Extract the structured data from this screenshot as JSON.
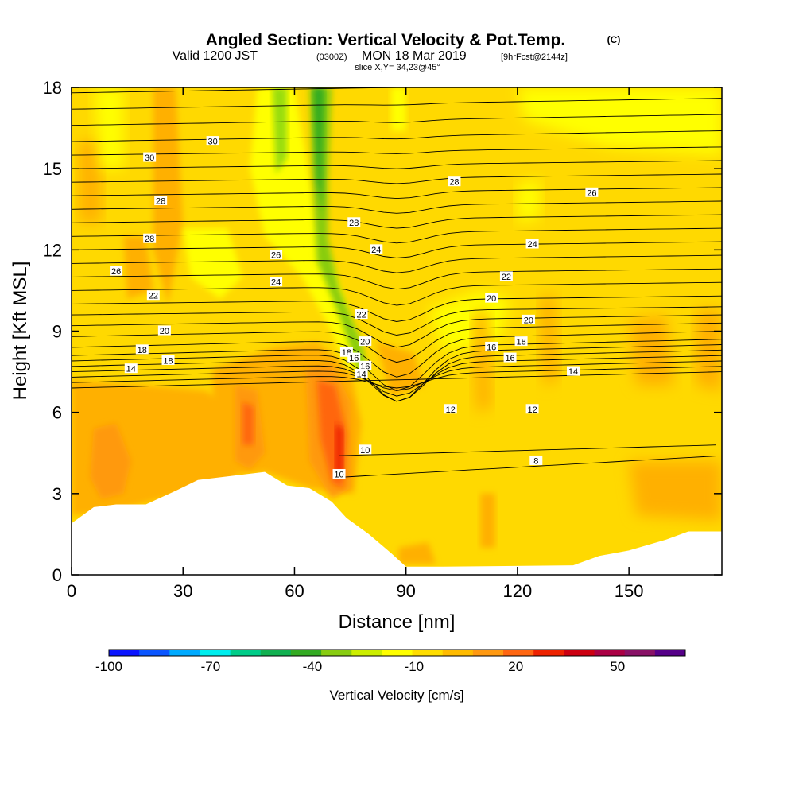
{
  "titles": {
    "main": "Angled Section: Vertical Velocity & Pot.Temp.",
    "main_unit": "(C)",
    "valid_prefix": "Valid 1200 JST",
    "valid_z": "(0300Z)",
    "valid_date": "MON 18 Mar 2019",
    "valid_fcst": "[9hrFcst@2144z]",
    "slice": "slice X,Y= 34,23@45°"
  },
  "chart_data": {
    "type": "heatmap",
    "xlabel": "Distance [nm]",
    "ylabel": "Height [Kft MSL]",
    "xlim": [
      0,
      175
    ],
    "ylim": [
      0,
      18
    ],
    "x_ticks": [
      "0",
      "30",
      "60",
      "90",
      "120",
      "150"
    ],
    "x_tick_values": [
      0,
      30,
      60,
      90,
      120,
      150
    ],
    "y_ticks": [
      "0",
      "3",
      "6",
      "9",
      "12",
      "15",
      "18"
    ],
    "y_tick_values": [
      0,
      3,
      6,
      9,
      12,
      15,
      18
    ],
    "colorbar": {
      "label": "Vertical Velocity [cm/s]",
      "tick_labels": [
        "-100",
        "-70",
        "-40",
        "-10",
        "20",
        "50"
      ],
      "tick_values": [
        -100,
        -70,
        -40,
        -10,
        20,
        50
      ],
      "range": [
        -100,
        70
      ],
      "colors": [
        "#0a14ff",
        "#0a55ff",
        "#00aaff",
        "#00eeee",
        "#00cc88",
        "#11b050",
        "#33aa22",
        "#88cc11",
        "#ccee00",
        "#ffff00",
        "#ffdd00",
        "#ffbb00",
        "#ff9911",
        "#ff6611",
        "#ee2200",
        "#cc0011",
        "#aa0044",
        "#881166",
        "#550088"
      ]
    },
    "terrain_nm_kft": [
      [
        0,
        1.9
      ],
      [
        3,
        2.2
      ],
      [
        6,
        2.5
      ],
      [
        12,
        2.6
      ],
      [
        20,
        2.6
      ],
      [
        28,
        3.1
      ],
      [
        34,
        3.5
      ],
      [
        52,
        3.8
      ],
      [
        58,
        3.3
      ],
      [
        64,
        3.2
      ],
      [
        70,
        2.7
      ],
      [
        74,
        2.1
      ],
      [
        80,
        1.5
      ],
      [
        86,
        0.8
      ],
      [
        90,
        0.3
      ],
      [
        100,
        0.3
      ],
      [
        135,
        0.35
      ],
      [
        142,
        0.7
      ],
      [
        150,
        0.9
      ],
      [
        160,
        1.3
      ],
      [
        166,
        1.6
      ],
      [
        175,
        1.6
      ]
    ],
    "contour_label_values": [
      "30",
      "30",
      "28",
      "28",
      "28",
      "28",
      "26",
      "26",
      "26",
      "24",
      "24",
      "24",
      "22",
      "22",
      "22",
      "20",
      "20",
      "20",
      "20",
      "18",
      "18",
      "18",
      "18",
      "16",
      "16",
      "16",
      "16",
      "14",
      "14",
      "14",
      "12",
      "12",
      "10",
      "10",
      "8"
    ]
  }
}
